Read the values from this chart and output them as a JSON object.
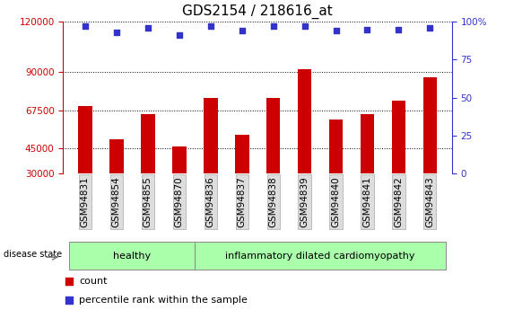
{
  "title": "GDS2154 / 218616_at",
  "categories": [
    "GSM94831",
    "GSM94854",
    "GSM94855",
    "GSM94870",
    "GSM94836",
    "GSM94837",
    "GSM94838",
    "GSM94839",
    "GSM94840",
    "GSM94841",
    "GSM94842",
    "GSM94843"
  ],
  "bar_values": [
    70000,
    50500,
    65000,
    46000,
    75000,
    53000,
    75000,
    92000,
    62000,
    65000,
    73000,
    87000
  ],
  "percentile_values": [
    97,
    93,
    96,
    91,
    97,
    94,
    97,
    97,
    94,
    95,
    95,
    96
  ],
  "bar_color": "#cc0000",
  "percentile_color": "#3333cc",
  "ylim_left": [
    30000,
    120000
  ],
  "ylim_right": [
    0,
    100
  ],
  "yticks_left": [
    30000,
    45000,
    67500,
    90000,
    120000
  ],
  "yticks_right": [
    0,
    25,
    50,
    75,
    100
  ],
  "left_axis_color": "#cc0000",
  "right_axis_color": "#3333cc",
  "n_healthy": 4,
  "healthy_label": "healthy",
  "disease_label": "inflammatory dilated cardiomyopathy",
  "disease_state_label": "disease state",
  "group_bg": "#aaffaa",
  "legend_count": "count",
  "legend_percentile": "percentile rank within the sample",
  "tick_bg": "#dddddd",
  "tick_edge": "#aaaaaa",
  "title_fontsize": 11,
  "tick_fontsize": 7.5,
  "label_fontsize": 8
}
